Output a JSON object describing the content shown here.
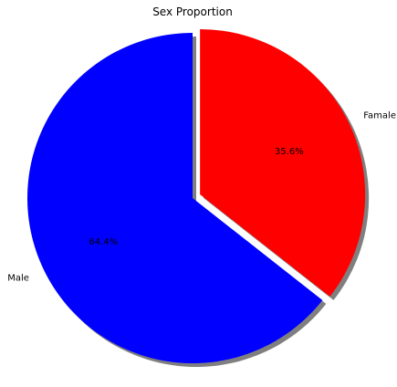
{
  "chart_data": {
    "type": "pie",
    "title": "Sex Proportion",
    "slices": [
      {
        "label": "Male",
        "value": 64.4,
        "pct_label": "64.4%",
        "color": "#0000ff",
        "explode": false
      },
      {
        "label": "Famale",
        "value": 35.6,
        "pct_label": "35.6%",
        "color": "#ff0000",
        "explode": true
      }
    ],
    "start_angle_deg": 90,
    "counterclockwise": true,
    "shadow": true
  }
}
